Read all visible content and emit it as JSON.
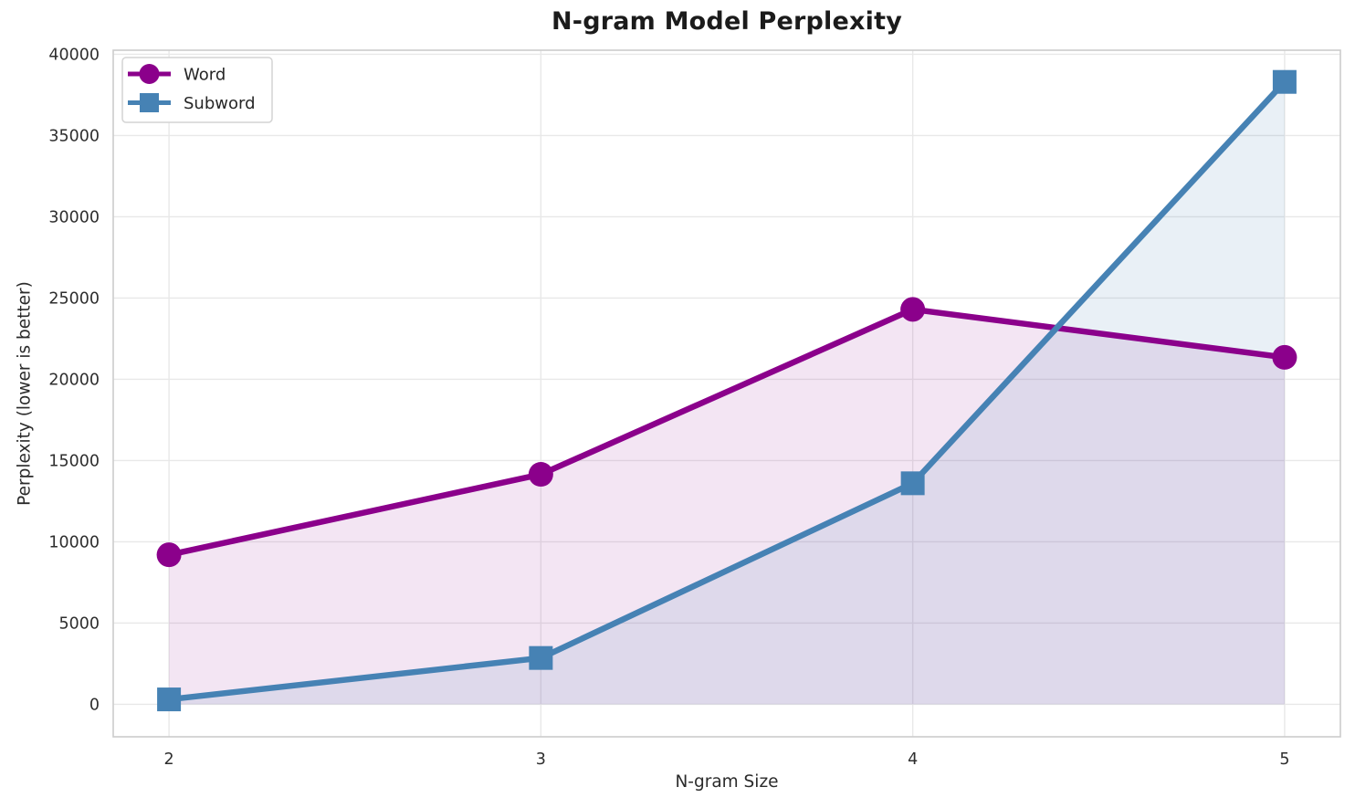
{
  "chart_data": {
    "type": "line",
    "title": "N-gram Model Perplexity",
    "xlabel": "N-gram Size",
    "ylabel": "Perplexity (lower is better)",
    "x": [
      2,
      3,
      4,
      5
    ],
    "series": [
      {
        "name": "Word",
        "marker": "circle",
        "color": "#8B008B",
        "fill_alpha": 0.1,
        "values": [
          9200,
          14150,
          24300,
          21350
        ]
      },
      {
        "name": "Subword",
        "marker": "square",
        "color": "#4682B4",
        "fill_alpha": 0.12,
        "values": [
          300,
          2850,
          13600,
          38300
        ]
      }
    ],
    "area_fill_baseline": 0,
    "xticks": [
      2,
      3,
      4,
      5
    ],
    "yticks": [
      0,
      5000,
      10000,
      15000,
      20000,
      25000,
      30000,
      35000,
      40000
    ],
    "xlim": [
      1.85,
      5.15
    ],
    "ylim": [
      -2000,
      40250
    ],
    "grid": true,
    "legend_position": "upper-left",
    "colors": {
      "grid": "#e8e8e8",
      "spine": "#cccccc",
      "tick_text": "#2e2e2e",
      "legend_border": "#d4d4d4",
      "background": "#ffffff"
    }
  }
}
